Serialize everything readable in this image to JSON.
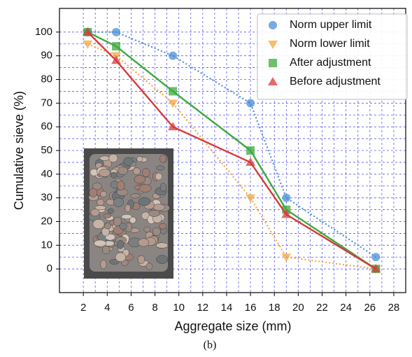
{
  "chart_data": {
    "type": "line",
    "x_label": "Aggregate size (mm)",
    "y_label": "Cumulative sieve (%)",
    "caption": "(b)",
    "x": [
      2.36,
      4.75,
      9.5,
      16,
      19,
      26.5
    ],
    "series": [
      {
        "name": "Norm upper limit",
        "color": "#4a8fd8",
        "marker": "circle",
        "linestyle": "dotted",
        "values": [
          100,
          100,
          90,
          70,
          30,
          5
        ]
      },
      {
        "name": "Norm lower limit",
        "color": "#f5a742",
        "marker": "triangle-down",
        "linestyle": "dotted",
        "values": [
          95,
          90,
          70,
          30,
          5,
          0
        ]
      },
      {
        "name": "After adjustment",
        "color": "#3daa3d",
        "marker": "square",
        "linestyle": "solid",
        "values": [
          100,
          94,
          75,
          50,
          25,
          0
        ]
      },
      {
        "name": "Before adjustment",
        "color": "#d83a3a",
        "marker": "triangle-up",
        "linestyle": "solid",
        "values": [
          100,
          88,
          60,
          45,
          23,
          0
        ]
      }
    ],
    "xlim": [
      0,
      29
    ],
    "xticks": [
      2,
      4,
      6,
      8,
      10,
      12,
      14,
      16,
      18,
      20,
      22,
      24,
      26,
      28
    ],
    "ylim": [
      -10,
      110
    ],
    "yticks": [
      0,
      10,
      20,
      30,
      40,
      50,
      60,
      70,
      80,
      90,
      100
    ],
    "grid": true,
    "legend": "upper right"
  }
}
